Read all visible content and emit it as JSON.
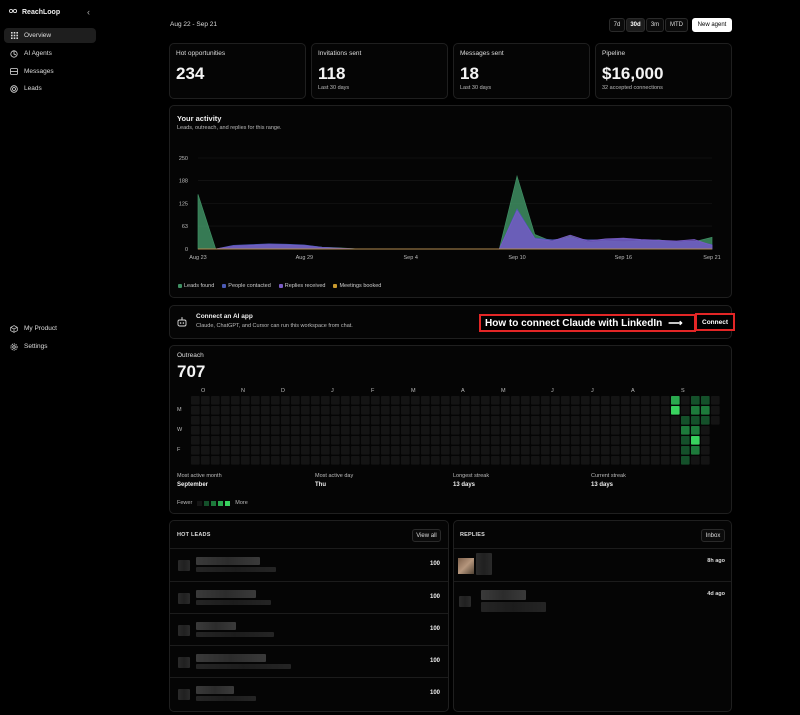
{
  "app": {
    "name": "ReachLoop"
  },
  "sidebar": {
    "items": [
      {
        "label": "Overview",
        "icon": "grid-icon",
        "active": true
      },
      {
        "label": "AI Agents",
        "icon": "agent-icon"
      },
      {
        "label": "Messages",
        "icon": "message-icon"
      },
      {
        "label": "Leads",
        "icon": "target-icon"
      }
    ],
    "bottom_items": [
      {
        "label": "My Product",
        "icon": "box-icon"
      },
      {
        "label": "Settings",
        "icon": "gear-icon"
      }
    ]
  },
  "header": {
    "date_range": "Aug 22 - Sep 21",
    "ranges": [
      "7d",
      "30d",
      "3m",
      "MTD"
    ],
    "selected_range": "30d",
    "new_agent": "New agent"
  },
  "stats": [
    {
      "label": "Hot opportunities",
      "value": "234",
      "sub": ""
    },
    {
      "label": "Invitations sent",
      "value": "118",
      "sub": "Last 30 days"
    },
    {
      "label": "Messages sent",
      "value": "18",
      "sub": "Last 30 days"
    },
    {
      "label": "Pipeline",
      "value": "$16,000",
      "sub": "32 accepted connections"
    }
  ],
  "activity": {
    "title": "Your activity",
    "subtitle": "Leads, outreach, and replies for this range."
  },
  "chart_data": {
    "type": "area",
    "x": [
      "Aug 23",
      "Aug 24",
      "Aug 25",
      "Aug 26",
      "Aug 27",
      "Aug 28",
      "Aug 29",
      "Aug 30",
      "Aug 31",
      "Sep 1",
      "Sep 2",
      "Sep 3",
      "Sep 4",
      "Sep 5",
      "Sep 6",
      "Sep 7",
      "Sep 8",
      "Sep 9",
      "Sep 10",
      "Sep 11",
      "Sep 12",
      "Sep 13",
      "Sep 14",
      "Sep 15",
      "Sep 16",
      "Sep 17",
      "Sep 18",
      "Sep 19",
      "Sep 20",
      "Sep 21"
    ],
    "xticks": [
      "Aug 23",
      "Aug 29",
      "Sep 4",
      "Sep 10",
      "Sep 16",
      "Sep 21"
    ],
    "yticks": [
      0,
      63,
      125,
      188,
      250
    ],
    "ylim": [
      0,
      250
    ],
    "series": [
      {
        "name": "Leads found",
        "color": "#3f8f63",
        "values": [
          150,
          0,
          5,
          10,
          12,
          12,
          10,
          5,
          3,
          0,
          0,
          0,
          0,
          0,
          0,
          0,
          0,
          0,
          200,
          40,
          20,
          35,
          18,
          22,
          20,
          22,
          25,
          18,
          20,
          32
        ]
      },
      {
        "name": "People contacted",
        "color": "#4b5ab5",
        "values": [
          0,
          0,
          10,
          12,
          14,
          13,
          11,
          5,
          2,
          0,
          0,
          0,
          0,
          0,
          0,
          0,
          0,
          0,
          110,
          30,
          25,
          30,
          25,
          25,
          28,
          24,
          22,
          20,
          22,
          12
        ]
      },
      {
        "name": "Replies received",
        "color": "#7a5cc6",
        "values": [
          0,
          0,
          8,
          10,
          12,
          11,
          9,
          4,
          2,
          0,
          0,
          0,
          0,
          0,
          0,
          0,
          0,
          0,
          105,
          28,
          22,
          38,
          22,
          28,
          30,
          26,
          24,
          22,
          26,
          10
        ]
      },
      {
        "name": "Meetings booked",
        "color": "#c99a2e",
        "values": [
          0,
          0,
          0,
          0,
          0,
          0,
          0,
          0,
          0,
          0,
          0,
          0,
          0,
          0,
          0,
          0,
          0,
          0,
          0,
          0,
          0,
          0,
          0,
          0,
          0,
          0,
          0,
          0,
          0,
          0
        ]
      }
    ]
  },
  "connect": {
    "title": "Connect an AI app",
    "subtitle": "Claude, ChatGPT, and Cursor can run this workspace from chat.",
    "callout": "How to connect Claude with LinkedIn",
    "button": "Connect"
  },
  "outreach": {
    "title": "Outreach",
    "total": "707",
    "months": [
      "O",
      "N",
      "D",
      "J",
      "F",
      "M",
      "A",
      "M",
      "J",
      "J",
      "A",
      "S"
    ],
    "days": [
      "M",
      "W",
      "F"
    ],
    "stats": [
      {
        "label": "Most active month",
        "value": "September"
      },
      {
        "label": "Most active day",
        "value": "Thu"
      },
      {
        "label": "Longest streak",
        "value": "13 days"
      },
      {
        "label": "Current streak",
        "value": "13 days"
      }
    ],
    "legend_fewer": "Fewer",
    "legend_more": "More"
  },
  "hot_leads": {
    "title": "HOT LEADS",
    "button": "View all",
    "rows": [
      "100",
      "100",
      "100",
      "100",
      "100"
    ]
  },
  "replies": {
    "title": "REPLIES",
    "button": "Inbox",
    "rows": [
      "8h ago",
      "4d ago"
    ]
  }
}
